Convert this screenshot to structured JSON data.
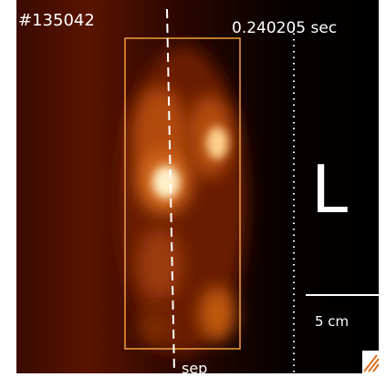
{
  "header": {
    "shot": "#135042",
    "time": "0.240205 sec"
  },
  "labels": {
    "mode": "L",
    "scale": "5 cm",
    "separatrix": "sep"
  }
}
